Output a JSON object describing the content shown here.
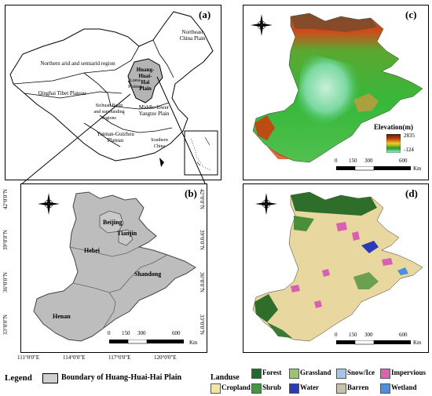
{
  "panels": {
    "a": {
      "label": "(a)"
    },
    "b": {
      "label": "(b)"
    },
    "c": {
      "label": "(c)"
    },
    "d": {
      "label": "(d)"
    }
  },
  "panel_a_regions": {
    "northeast": "Northeast China Plain",
    "northern": "Northern arid and semiarid region",
    "qinghai": "Qinghai Tibet Plateau",
    "hhh": "Huang-Huai-Hai Plain",
    "loess": "Loess Plateau",
    "sichuan": "Sichuan Basin and surrounding regions",
    "middle_lower": "Middle-lower Yangtze Plain",
    "yunnan": "Yunnan-Guizhou Plateau",
    "southern": "Southern China"
  },
  "panel_b": {
    "provinces": [
      "Beijing",
      "Tianjin",
      "Hebei",
      "Shandong",
      "Henan"
    ],
    "lat_ticks": [
      "42°0'0\"N",
      "39°0'0\"N",
      "36°0'0\"N",
      "33°0'0\"N"
    ],
    "lon_ticks": [
      "111°0'0\"E",
      "114°0'0\"E",
      "117°0'0\"E",
      "120°0'0\"E"
    ],
    "scale": [
      "0",
      "150",
      "300",
      "600"
    ],
    "scale_unit": "Km"
  },
  "panel_c": {
    "legend_title": "Elevation(m)",
    "max": "2835",
    "min": "-124",
    "scale": [
      "0",
      "150",
      "300",
      "600"
    ],
    "scale_unit": "Km"
  },
  "panel_d": {
    "scale": [
      "0",
      "150",
      "300",
      "600"
    ],
    "scale_unit": "Km"
  },
  "legend": {
    "title": "Legend",
    "boundary": "Boundary of Huang-Huai-Hai Plain",
    "landuse_title": "Landuse",
    "items": [
      {
        "name": "Forest",
        "color": "#1f6b2a"
      },
      {
        "name": "Grassland",
        "color": "#9bc46d"
      },
      {
        "name": "Snow/Ice",
        "color": "#a8c4e6"
      },
      {
        "name": "Impervious",
        "color": "#e060b0"
      },
      {
        "name": "Cropland",
        "color": "#f2e6a4"
      },
      {
        "name": "Shrub",
        "color": "#3e9a3a"
      },
      {
        "name": "Water",
        "color": "#2a3bb8"
      },
      {
        "name": "Barren",
        "color": "#c9c0a8"
      },
      {
        "name": "Wetland",
        "color": "#4a8fe0"
      }
    ]
  },
  "compass": {
    "n": "N",
    "s": "S",
    "e": "E",
    "w": "W"
  }
}
